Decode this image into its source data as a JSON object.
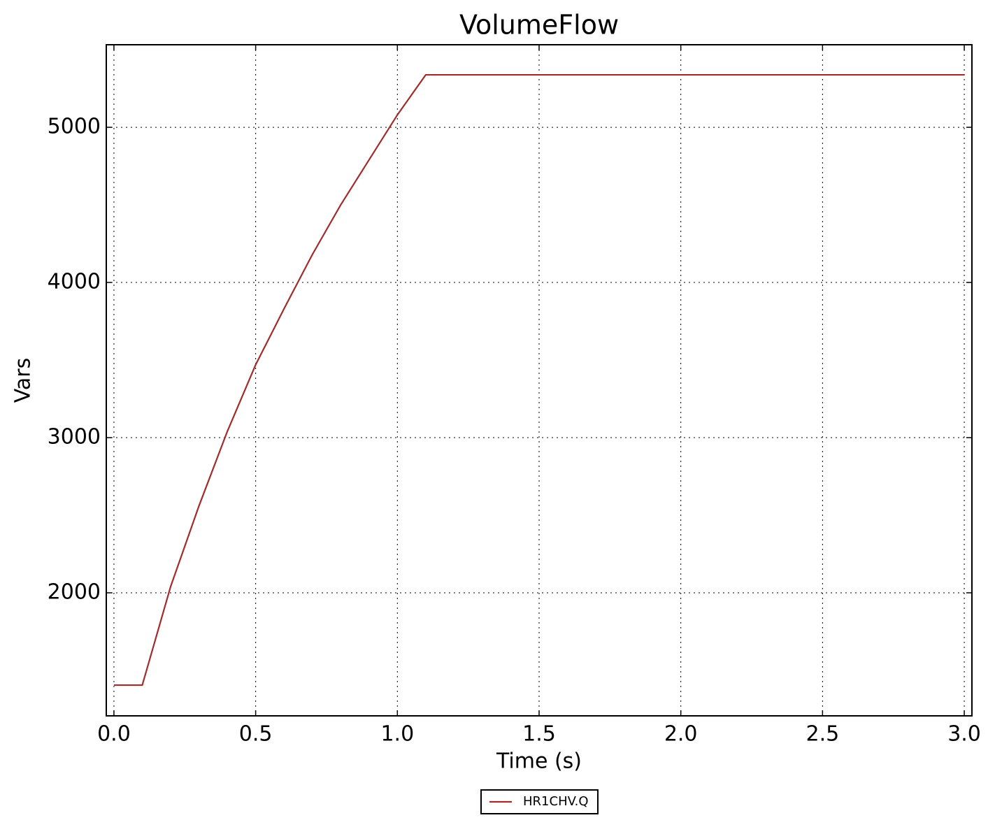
{
  "chart_data": {
    "type": "line",
    "title": "VolumeFlow",
    "x_label": "Time (s)",
    "y_label": "Vars",
    "x": [
      0,
      0.1,
      0.2,
      0.3,
      0.4,
      0.5,
      0.6,
      0.7,
      0.8,
      0.9,
      1.0,
      1.1,
      3.0
    ],
    "series": [
      {
        "name": "HR1CHV.Q",
        "color": "#a02c2c",
        "values": [
          1405,
          1405,
          2040,
          2560,
          3040,
          3470,
          3830,
          4180,
          4500,
          4790,
          5080,
          5338,
          5338
        ]
      }
    ],
    "xlim": [
      -0.027,
      3.027
    ],
    "ylim": [
      1207,
      5532
    ],
    "xticks": [
      {
        "value": 0,
        "label": "0.0"
      },
      0.5,
      {
        "value": 1,
        "label": "1.0"
      },
      1.5,
      {
        "value": 2,
        "label": "2.0"
      },
      2.5,
      {
        "value": 3,
        "label": "3.0"
      }
    ],
    "yticks": [
      2000,
      3000,
      4000,
      5000
    ],
    "grid": true,
    "legend": "below"
  }
}
